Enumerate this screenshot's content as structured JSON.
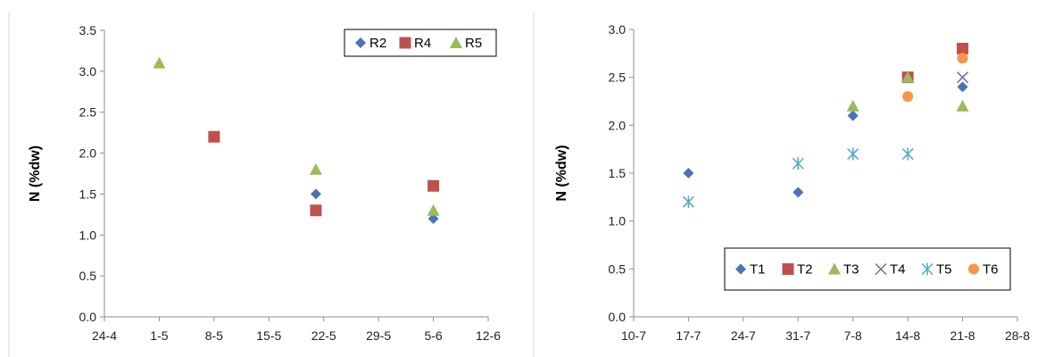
{
  "chart_data": [
    {
      "type": "scatter",
      "title": "",
      "xlabel": "",
      "ylabel": "N (%dw)",
      "x_ticks": [
        "24-4",
        "1-5",
        "8-5",
        "15-5",
        "22-5",
        "29-5",
        "5-6",
        "12-6"
      ],
      "y_ticks": [
        "0.0",
        "0.5",
        "1.0",
        "1.5",
        "2.0",
        "2.5",
        "3.0",
        "3.5"
      ],
      "xlim": [
        "24-4",
        "12-6"
      ],
      "ylim": [
        0,
        3.5
      ],
      "grid": false,
      "legend_position": "top-right",
      "series": [
        {
          "name": "R2",
          "marker": "diamond",
          "color": "#4a74b5",
          "x": [
            "21-5",
            "5-6"
          ],
          "y": [
            1.5,
            1.2
          ]
        },
        {
          "name": "R4",
          "marker": "square",
          "color": "#c0504d",
          "x": [
            "8-5",
            "21-5",
            "5-6"
          ],
          "y": [
            2.2,
            1.3,
            1.6
          ]
        },
        {
          "name": "R5",
          "marker": "triangle",
          "color": "#9bbb59",
          "x": [
            "1-5",
            "21-5",
            "5-6"
          ],
          "y": [
            3.1,
            1.8,
            1.3
          ]
        }
      ]
    },
    {
      "type": "scatter",
      "title": "",
      "xlabel": "",
      "ylabel": "N (%dw)",
      "x_ticks": [
        "10-7",
        "17-7",
        "24-7",
        "31-7",
        "7-8",
        "14-8",
        "21-8",
        "28-8"
      ],
      "y_ticks": [
        "0.0",
        "0.5",
        "1.0",
        "1.5",
        "2.0",
        "2.5",
        "3.0"
      ],
      "xlim": [
        "10-7",
        "28-8"
      ],
      "ylim": [
        0,
        3.0
      ],
      "grid": false,
      "legend_position": "bottom-right",
      "series": [
        {
          "name": "T1",
          "marker": "diamond",
          "color": "#4a74b5",
          "x": [
            "17-7",
            "31-7",
            "7-8",
            "21-8"
          ],
          "y": [
            1.5,
            1.3,
            2.1,
            2.4
          ]
        },
        {
          "name": "T2",
          "marker": "square",
          "color": "#c0504d",
          "x": [
            "14-8",
            "21-8"
          ],
          "y": [
            2.5,
            2.8
          ]
        },
        {
          "name": "T3",
          "marker": "triangle",
          "color": "#9bbb59",
          "x": [
            "7-8",
            "14-8",
            "21-8"
          ],
          "y": [
            2.2,
            2.5,
            2.2
          ]
        },
        {
          "name": "T4",
          "marker": "x",
          "color": "#8064a2",
          "x": [
            "21-8"
          ],
          "y": [
            2.5
          ]
        },
        {
          "name": "T5",
          "marker": "star",
          "color": "#4bacc6",
          "x": [
            "17-7",
            "31-7",
            "7-8",
            "14-8"
          ],
          "y": [
            1.2,
            1.6,
            1.7,
            1.7
          ]
        },
        {
          "name": "T6",
          "marker": "circle",
          "color": "#f79646",
          "x": [
            "14-8",
            "21-8"
          ],
          "y": [
            2.3,
            2.7
          ]
        }
      ]
    }
  ]
}
